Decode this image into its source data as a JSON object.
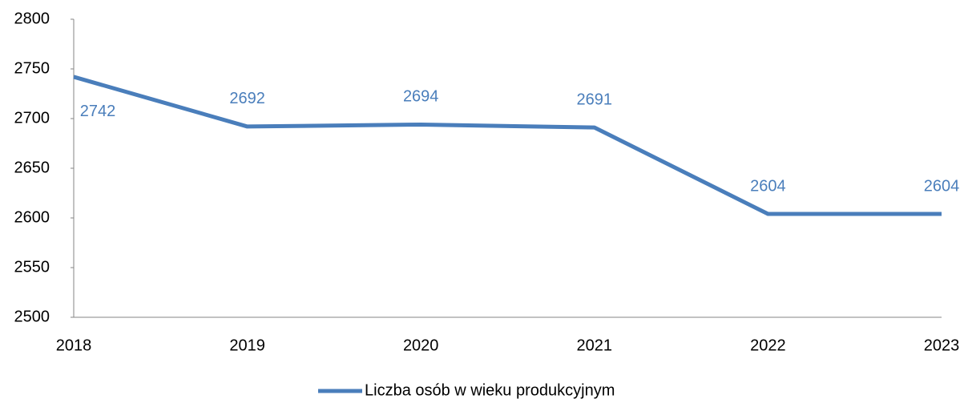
{
  "chart_data": {
    "type": "line",
    "categories": [
      "2018",
      "2019",
      "2020",
      "2021",
      "2022",
      "2023"
    ],
    "series": [
      {
        "name": "Liczba osób w wieku produkcyjnym",
        "color": "#4a7ebb",
        "values": [
          2742,
          2692,
          2694,
          2691,
          2604,
          2604
        ]
      }
    ],
    "ylim": [
      2500,
      2800
    ],
    "yticks": [
      2500,
      2550,
      2600,
      2650,
      2700,
      2750,
      2800
    ],
    "data_labels": true,
    "legend": "bottom"
  }
}
